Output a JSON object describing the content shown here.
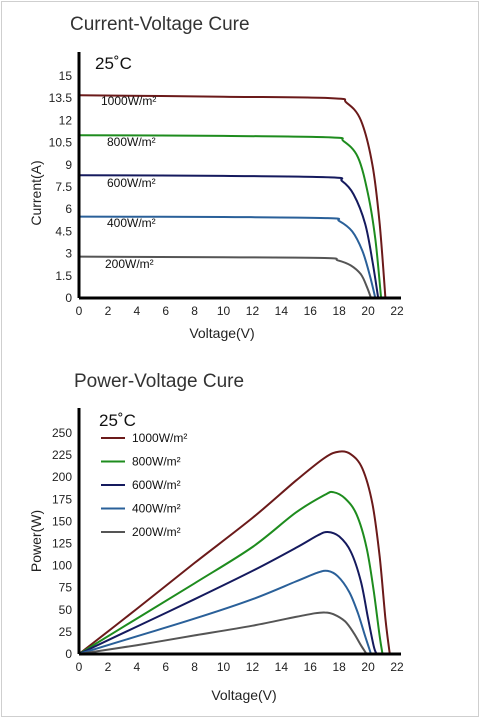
{
  "chart_data": [
    {
      "type": "line",
      "title": "Current-Voltage Cure",
      "annotation": "25˚C",
      "xlabel": "Voltage(V)",
      "ylabel": "Current(A)",
      "xlim": [
        0,
        22
      ],
      "ylim": [
        0,
        15
      ],
      "x_ticks": [
        "0",
        "2",
        "4",
        "6",
        "8",
        "10",
        "12",
        "14",
        "16",
        "18",
        "20",
        "22"
      ],
      "y_ticks": [
        "0",
        "1.5",
        "3",
        "4.5",
        "6",
        "7.5",
        "9",
        "10.5",
        "12",
        "13.5",
        "15"
      ],
      "grid": false,
      "series": [
        {
          "name": "1000W/m²",
          "color": "#6b1a1a",
          "points": [
            [
              0,
              13.7
            ],
            [
              10,
              13.6
            ],
            [
              17.5,
              13.5
            ],
            [
              18.5,
              13.2
            ],
            [
              19.5,
              12.0
            ],
            [
              20.3,
              9.0
            ],
            [
              20.8,
              5.0
            ],
            [
              21.2,
              0
            ]
          ]
        },
        {
          "name": "800W/m²",
          "color": "#1e8c1e",
          "points": [
            [
              0,
              11.0
            ],
            [
              10,
              10.95
            ],
            [
              17.4,
              10.85
            ],
            [
              18.3,
              10.6
            ],
            [
              19.3,
              9.5
            ],
            [
              20.0,
              7.0
            ],
            [
              20.5,
              4.0
            ],
            [
              20.9,
              0
            ]
          ]
        },
        {
          "name": "600W/m²",
          "color": "#151a5e",
          "points": [
            [
              0,
              8.3
            ],
            [
              10,
              8.25
            ],
            [
              17.4,
              8.15
            ],
            [
              18.2,
              7.9
            ],
            [
              19.0,
              7.0
            ],
            [
              19.8,
              5.0
            ],
            [
              20.3,
              2.5
            ],
            [
              20.7,
              0
            ]
          ]
        },
        {
          "name": "400W/m²",
          "color": "#2a6099",
          "points": [
            [
              0,
              5.5
            ],
            [
              10,
              5.47
            ],
            [
              17.2,
              5.4
            ],
            [
              18.0,
              5.2
            ],
            [
              18.9,
              4.5
            ],
            [
              19.6,
              3.2
            ],
            [
              20.1,
              1.6
            ],
            [
              20.5,
              0
            ]
          ]
        },
        {
          "name": "200W/m²",
          "color": "#555555",
          "points": [
            [
              0,
              2.8
            ],
            [
              10,
              2.75
            ],
            [
              17.0,
              2.7
            ],
            [
              17.9,
              2.55
            ],
            [
              18.8,
              2.2
            ],
            [
              19.5,
              1.6
            ],
            [
              19.9,
              0.8
            ],
            [
              20.2,
              0
            ]
          ]
        }
      ]
    },
    {
      "type": "line",
      "title": "Power-Voltage Cure",
      "annotation": "25˚C",
      "xlabel": "Voltage(V)",
      "ylabel": "Power(W)",
      "xlim": [
        0,
        22
      ],
      "ylim": [
        0,
        250
      ],
      "x_ticks": [
        "0",
        "2",
        "4",
        "6",
        "8",
        "10",
        "12",
        "14",
        "16",
        "18",
        "20",
        "22"
      ],
      "y_ticks": [
        "0",
        "25",
        "50",
        "75",
        "100",
        "125",
        "150",
        "175",
        "200",
        "225",
        "250"
      ],
      "grid": false,
      "legend": "top-left",
      "series": [
        {
          "name": "1000W/m²",
          "color": "#6b1a1a",
          "points": [
            [
              0,
              0
            ],
            [
              4,
              51
            ],
            [
              8,
              103
            ],
            [
              12,
              154
            ],
            [
              15,
              196
            ],
            [
              17,
              222
            ],
            [
              18,
              229
            ],
            [
              18.8,
              226
            ],
            [
              19.6,
              210
            ],
            [
              20.3,
              170
            ],
            [
              20.8,
              110
            ],
            [
              21.2,
              40
            ],
            [
              21.5,
              0
            ]
          ]
        },
        {
          "name": "800W/m²",
          "color": "#1e8c1e",
          "points": [
            [
              0,
              0
            ],
            [
              4,
              40
            ],
            [
              8,
              80
            ],
            [
              12,
              121
            ],
            [
              15,
              160
            ],
            [
              17,
              180
            ],
            [
              17.6,
              183
            ],
            [
              18.4,
              176
            ],
            [
              19.2,
              158
            ],
            [
              19.9,
              120
            ],
            [
              20.4,
              70
            ],
            [
              20.8,
              20
            ],
            [
              21,
              0
            ]
          ]
        },
        {
          "name": "600W/m²",
          "color": "#151a5e",
          "points": [
            [
              0,
              0
            ],
            [
              4,
              31
            ],
            [
              8,
              62
            ],
            [
              12,
              94
            ],
            [
              15,
              120
            ],
            [
              16.5,
              134
            ],
            [
              17.2,
              138
            ],
            [
              18,
              133
            ],
            [
              18.8,
              116
            ],
            [
              19.5,
              82
            ],
            [
              20.0,
              40
            ],
            [
              20.4,
              8
            ],
            [
              20.6,
              0
            ]
          ]
        },
        {
          "name": "400W/m²",
          "color": "#2a6099",
          "points": [
            [
              0,
              0
            ],
            [
              4,
              20
            ],
            [
              8,
              40
            ],
            [
              12,
              62
            ],
            [
              15,
              82
            ],
            [
              16.5,
              92
            ],
            [
              17.2,
              94
            ],
            [
              17.9,
              88
            ],
            [
              18.7,
              70
            ],
            [
              19.3,
              46
            ],
            [
              19.8,
              20
            ],
            [
              20.2,
              0
            ]
          ]
        },
        {
          "name": "200W/m²",
          "color": "#555555",
          "points": [
            [
              0,
              0
            ],
            [
              4,
              10
            ],
            [
              8,
              21
            ],
            [
              12,
              32
            ],
            [
              15,
              42
            ],
            [
              16.3,
              46
            ],
            [
              17,
              47
            ],
            [
              17.6,
              45
            ],
            [
              18.4,
              37
            ],
            [
              19.0,
              24
            ],
            [
              19.5,
              10
            ],
            [
              19.9,
              0
            ]
          ]
        }
      ]
    }
  ]
}
